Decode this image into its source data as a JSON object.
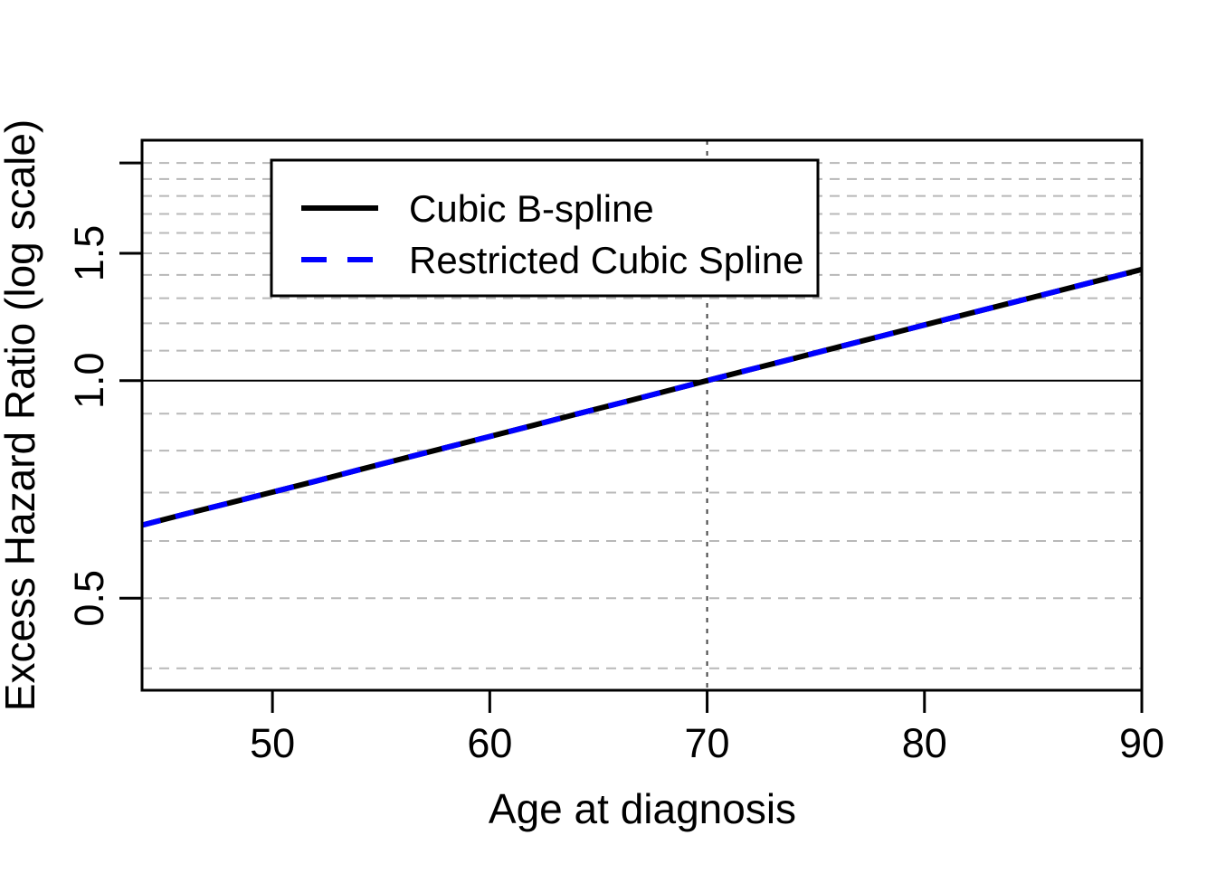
{
  "chart_data": {
    "type": "line",
    "title": "",
    "xlabel": "Age at diagnosis",
    "ylabel": "Excess Hazard Ratio (log scale)",
    "y_scale": "log",
    "xlim": [
      44,
      90
    ],
    "ylim": [
      0.373,
      2.15
    ],
    "x_ticks": [
      {
        "value": 50,
        "label": "50"
      },
      {
        "value": 60,
        "label": "60"
      },
      {
        "value": 70,
        "label": "70"
      },
      {
        "value": 80,
        "label": "80"
      },
      {
        "value": 90,
        "label": "90"
      }
    ],
    "y_ticks": [
      {
        "value": 0.5,
        "label": "0.5"
      },
      {
        "value": 1.0,
        "label": "1.0"
      },
      {
        "value": 1.5,
        "label": "1.5"
      },
      {
        "value": 2.0,
        "label": ""
      }
    ],
    "grid_y_values": [
      0.4,
      0.5,
      0.6,
      0.7,
      0.8,
      0.9,
      1.1,
      1.2,
      1.3,
      1.4,
      1.5,
      1.6,
      1.7,
      1.8,
      1.9,
      2.0
    ],
    "grid_on": true,
    "reference_lines": {
      "horizontal_y": 1.0,
      "vertical_x": 70
    },
    "x": [
      44,
      46,
      48,
      50,
      52,
      54,
      56,
      58,
      60,
      62,
      64,
      66,
      68,
      70,
      72,
      74,
      76,
      78,
      80,
      82,
      84,
      86,
      88,
      90
    ],
    "series": [
      {
        "name": "Cubic B-spline",
        "color": "#000000",
        "line_style": "solid",
        "values": [
          0.631,
          0.654,
          0.677,
          0.701,
          0.726,
          0.753,
          0.78,
          0.808,
          0.837,
          0.867,
          0.899,
          0.931,
          0.965,
          1.0,
          1.036,
          1.073,
          1.112,
          1.152,
          1.194,
          1.237,
          1.281,
          1.327,
          1.375,
          1.425
        ]
      },
      {
        "name": "Restricted Cubic Spline",
        "color": "#0000FF",
        "line_style": "dashed",
        "values": [
          0.631,
          0.654,
          0.677,
          0.701,
          0.726,
          0.753,
          0.78,
          0.808,
          0.837,
          0.867,
          0.899,
          0.931,
          0.965,
          1.0,
          1.036,
          1.073,
          1.112,
          1.152,
          1.194,
          1.237,
          1.281,
          1.327,
          1.375,
          1.425
        ]
      }
    ],
    "legend": {
      "position": "top-left",
      "entries": [
        "Cubic B-spline",
        "Restricted Cubic Spline"
      ]
    }
  },
  "colors": {
    "gridline": "#b8b8b8",
    "reference_h_line": "#000000",
    "reference_v_line": "#444444",
    "axis": "#000000",
    "background": "#ffffff",
    "series_black": "#000000",
    "series_blue": "#0000FF"
  }
}
